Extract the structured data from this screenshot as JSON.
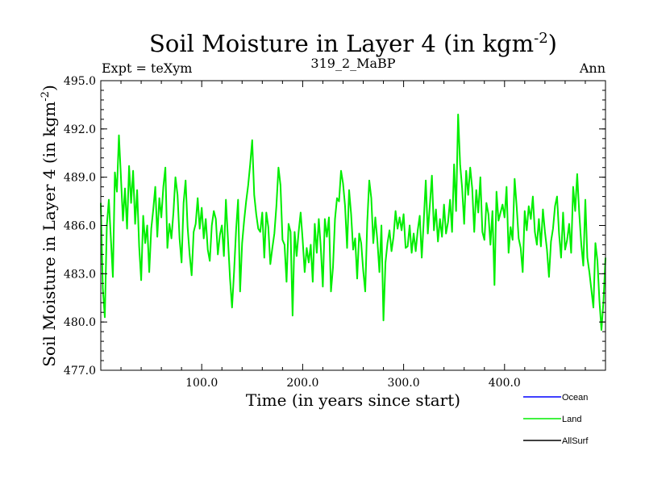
{
  "chart_data": {
    "type": "line",
    "title": "Soil Moisture in Layer 4 (in kgm",
    "title_sup": "-2",
    "title_close": ")",
    "subtitle_left": "Expt = teXym",
    "subtitle_center": "319_2_MaBP",
    "subtitle_right": "Ann",
    "xlabel": "Time (in years since start)",
    "ylabel": "Soil Moisture in Layer 4 (in kgm",
    "ylabel_sup": "-2",
    "ylabel_close": ")",
    "xlim": [
      0,
      500
    ],
    "ylim": [
      477.0,
      495.0
    ],
    "x_ticks": [
      100,
      200,
      300,
      400
    ],
    "x_tick_labels": [
      "100.0",
      "200.0",
      "300.0",
      "400.0"
    ],
    "y_ticks": [
      477.0,
      480.0,
      483.0,
      486.0,
      489.0,
      492.0,
      495.0
    ],
    "y_tick_labels": [
      "477.0",
      "480.0",
      "483.0",
      "486.0",
      "489.0",
      "492.0",
      "495.0"
    ],
    "legend_position": "bottom-right",
    "series": [
      {
        "name": "Ocean",
        "color": "#0000ff",
        "x": [],
        "y": []
      },
      {
        "name": "Land",
        "color": "#00ee00",
        "x": [
          0,
          2,
          4,
          6,
          8,
          10,
          12,
          14,
          16,
          18,
          20,
          22,
          24,
          26,
          28,
          30,
          32,
          34,
          36,
          38,
          40,
          42,
          44,
          46,
          48,
          50,
          52,
          54,
          56,
          58,
          60,
          62,
          64,
          66,
          68,
          70,
          72,
          74,
          76,
          78,
          80,
          82,
          84,
          86,
          88,
          90,
          92,
          94,
          96,
          98,
          100,
          102,
          104,
          106,
          108,
          110,
          112,
          114,
          116,
          118,
          120,
          122,
          124,
          126,
          128,
          130,
          132,
          134,
          136,
          138,
          140,
          142,
          144,
          146,
          148,
          150,
          152,
          154,
          156,
          158,
          160,
          162,
          164,
          166,
          168,
          170,
          172,
          174,
          176,
          178,
          180,
          182,
          184,
          186,
          188,
          190,
          192,
          194,
          196,
          198,
          200,
          202,
          204,
          206,
          208,
          210,
          212,
          214,
          216,
          218,
          220,
          222,
          224,
          226,
          228,
          230,
          232,
          234,
          236,
          238,
          240,
          242,
          244,
          246,
          248,
          250,
          252,
          254,
          256,
          258,
          260,
          262,
          264,
          266,
          268,
          270,
          272,
          274,
          276,
          278,
          280,
          282,
          284,
          286,
          288,
          290,
          292,
          294,
          296,
          298,
          300,
          302,
          304,
          306,
          308,
          310,
          312,
          314,
          316,
          318,
          320,
          322,
          324,
          326,
          328,
          330,
          332,
          334,
          336,
          338,
          340,
          342,
          344,
          346,
          348,
          350,
          352,
          354,
          356,
          358,
          360,
          362,
          364,
          366,
          368,
          370,
          372,
          374,
          376,
          378,
          380,
          382,
          384,
          386,
          388,
          390,
          392,
          394,
          396,
          398,
          400,
          402,
          404,
          406,
          408,
          410,
          412,
          414,
          416,
          418,
          420,
          422,
          424,
          426,
          428,
          430,
          432,
          434,
          436,
          438,
          440,
          442,
          444,
          446,
          448,
          450,
          452,
          454,
          456,
          458,
          460,
          462,
          464,
          466,
          468,
          470,
          472,
          474,
          476,
          478,
          480,
          482,
          484,
          486,
          488,
          490,
          492,
          494,
          496,
          498,
          500
        ],
        "y": [
          487.4,
          482.1,
          480.3,
          486.0,
          487.6,
          485.2,
          482.8,
          489.3,
          488.1,
          491.6,
          489.0,
          486.3,
          488.3,
          485.8,
          489.7,
          487.4,
          489.4,
          486.1,
          488.2,
          484.7,
          482.6,
          486.6,
          484.9,
          486.0,
          483.1,
          485.8,
          487.0,
          488.4,
          485.3,
          487.7,
          486.5,
          488.4,
          489.6,
          484.6,
          486.1,
          485.2,
          486.8,
          489.0,
          487.9,
          485.2,
          483.7,
          487.4,
          488.8,
          485.9,
          484.2,
          482.9,
          485.6,
          486.1,
          487.7,
          485.8,
          487.1,
          485.2,
          486.4,
          484.5,
          483.8,
          486.0,
          486.9,
          486.4,
          484.2,
          485.4,
          486.0,
          484.1,
          487.6,
          485.1,
          482.7,
          480.9,
          483.1,
          485.7,
          487.6,
          481.9,
          484.9,
          486.3,
          487.5,
          488.5,
          489.8,
          491.3,
          487.9,
          486.7,
          485.8,
          485.6,
          486.8,
          484.0,
          486.8,
          485.9,
          483.6,
          484.6,
          485.5,
          487.2,
          489.6,
          488.5,
          485.1,
          484.8,
          482.5,
          486.1,
          485.6,
          480.4,
          485.6,
          484.1,
          485.6,
          486.8,
          485.1,
          483.1,
          484.6,
          483.7,
          484.8,
          482.5,
          486.1,
          484.3,
          486.4,
          484.6,
          482.2,
          486.4,
          485.3,
          486.5,
          481.9,
          483.4,
          486.4,
          487.7,
          487.5,
          489.4,
          488.6,
          487.2,
          484.6,
          488.2,
          486.7,
          484.5,
          485.2,
          482.7,
          485.5,
          484.9,
          483.2,
          481.9,
          486.2,
          488.8,
          487.7,
          484.9,
          486.5,
          485.1,
          483.1,
          486.0,
          480.1,
          483.7,
          484.9,
          485.7,
          484.4,
          485.3,
          486.9,
          485.8,
          486.5,
          485.7,
          486.7,
          484.6,
          484.7,
          486.0,
          484.3,
          485.5,
          484.4,
          485.7,
          486.6,
          484.0,
          486.3,
          488.8,
          485.5,
          487.3,
          489.1,
          485.7,
          487.0,
          485.0,
          486.4,
          485.3,
          487.3,
          485.5,
          486.2,
          487.6,
          485.6,
          489.8,
          486.9,
          492.9,
          489.8,
          488.3,
          486.1,
          489.4,
          487.9,
          489.6,
          488.3,
          485.6,
          488.2,
          486.8,
          489.0,
          485.6,
          485.1,
          487.4,
          486.7,
          484.8,
          486.9,
          482.3,
          488.1,
          486.3,
          486.8,
          487.3,
          486.5,
          488.4,
          484.3,
          485.9,
          485.1,
          488.9,
          487.2,
          485.2,
          484.6,
          483.1,
          486.9,
          485.7,
          487.2,
          486.4,
          487.8,
          485.6,
          484.8,
          486.4,
          484.7,
          487.0,
          485.6,
          484.5,
          482.8,
          485.0,
          485.8,
          487.2,
          487.8,
          485.5,
          484.0,
          486.8,
          484.5,
          485.1,
          486.1,
          484.3,
          488.4,
          486.9,
          489.2,
          486.8,
          484.8,
          483.5,
          487.6,
          484.0,
          483.1,
          482.0,
          480.9,
          484.9,
          483.8,
          481.3,
          479.5,
          481.3,
          484.0
        ]
      },
      {
        "name": "AllSurf",
        "color": "#000000",
        "x": [],
        "y": []
      }
    ]
  }
}
